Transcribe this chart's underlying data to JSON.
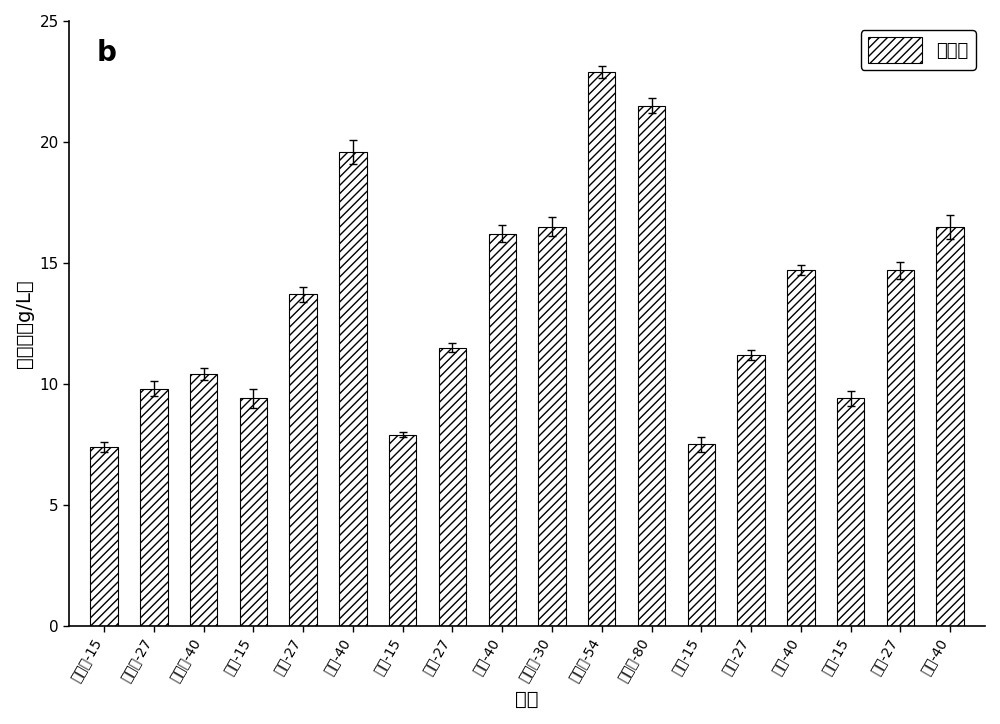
{
  "categories": [
    "海藻糖-15",
    "海藻糖-27",
    "海藻糖-40",
    "府糖-15",
    "府糖-27",
    "府糖-40",
    "果糖-15",
    "果糖-27",
    "果糖-40",
    "葡萄糖-30",
    "葡萄糖-54",
    "葡萄糖-80",
    "木糖-15",
    "木糖-27",
    "木糖-40",
    "乳糖-15",
    "乳糖-27",
    "乳糖-40"
  ],
  "values": [
    7.4,
    9.8,
    10.4,
    9.4,
    13.7,
    19.6,
    7.9,
    11.5,
    16.2,
    16.5,
    22.9,
    21.5,
    7.5,
    11.2,
    14.7,
    9.4,
    14.7,
    16.5
  ],
  "errors": [
    0.2,
    0.3,
    0.25,
    0.4,
    0.3,
    0.5,
    0.1,
    0.2,
    0.35,
    0.4,
    0.25,
    0.3,
    0.3,
    0.2,
    0.2,
    0.3,
    0.35,
    0.5
  ],
  "bar_color": "#ffffff",
  "bar_edgecolor": "#000000",
  "hatch": "////",
  "title_label": "b",
  "ylabel": "生物量（g/L）",
  "xlabel": "碗源",
  "legend_label": "生物量",
  "ylim": [
    0,
    25
  ],
  "yticks": [
    0,
    5,
    10,
    15,
    20,
    25
  ],
  "background_color": "#ffffff",
  "bar_width": 0.55,
  "figsize": [
    10.0,
    7.24
  ],
  "dpi": 100,
  "title_fontsize": 20,
  "axis_label_fontsize": 14,
  "tick_fontsize": 10,
  "legend_fontsize": 13,
  "tick_rotation": 60
}
